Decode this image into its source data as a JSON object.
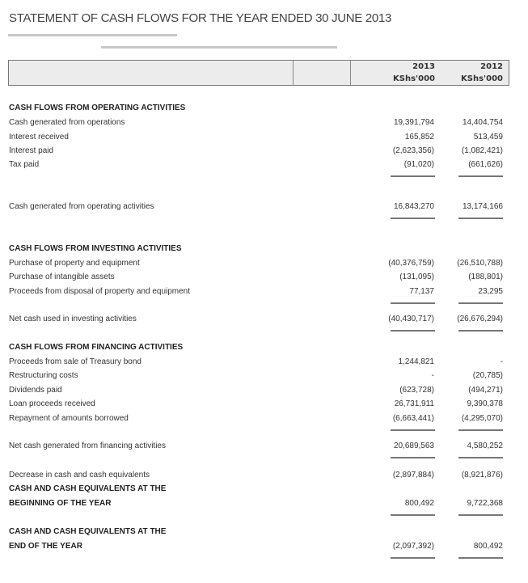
{
  "title": "STATEMENT OF CASH FLOWS FOR THE YEAR ENDED 30 JUNE 2013",
  "columns": [
    {
      "year": "2013",
      "unit": "KShs'000"
    },
    {
      "year": "2012",
      "unit": "KShs'000"
    }
  ],
  "rows": [
    {
      "label": "CASH FLOWS FROM OPERATING ACTIVITIES",
      "bold": true,
      "v2013": "",
      "v2012": ""
    },
    {
      "label": "Cash generated from operations",
      "v2013": "19,391,794",
      "v2012": "14,404,754"
    },
    {
      "label": "Interest received",
      "v2013": "165,852",
      "v2012": "513,459"
    },
    {
      "label": "Interest paid",
      "v2013": "(2,623,356)",
      "v2012": "(1,082,421)"
    },
    {
      "label": "Tax paid",
      "v2013": "(91,020)",
      "v2012": "(661,626)",
      "underline": true
    },
    {
      "label": "Cash generated from operating activities",
      "v2013": "16,843,270",
      "v2012": "13,174,166",
      "underline": true
    },
    {
      "label": "CASH FLOWS FROM INVESTING ACTIVITIES",
      "bold": true,
      "v2013": "",
      "v2012": ""
    },
    {
      "label": "Purchase of property and equipment",
      "v2013": "(40,376,759)",
      "v2012": "(26,510,788)"
    },
    {
      "label": "Purchase of intangible assets",
      "v2013": "(131,095)",
      "v2012": "(188,801)"
    },
    {
      "label": "Proceeds from disposal of property and equipment",
      "v2013": "77,137",
      "v2012": "23,295",
      "underline": true
    },
    {
      "label": "Net cash used in investing activities",
      "v2013": "(40,430,717)",
      "v2012": "(26,676,294)",
      "underline": true
    },
    {
      "label": "CASH FLOWS FROM FINANCING ACTIVITIES",
      "bold": true,
      "v2013": "",
      "v2012": ""
    },
    {
      "label": "Proceeds from sale of Treasury bond",
      "v2013": "1,244,821",
      "v2012": "-"
    },
    {
      "label": "Restructuring costs",
      "v2013": "-",
      "v2012": "(20,785)"
    },
    {
      "label": "Dividends paid",
      "v2013": "(623,728)",
      "v2012": "(494,271)"
    },
    {
      "label": "Loan proceeds received",
      "v2013": "26,731,911",
      "v2012": "9,390,378"
    },
    {
      "label": "Repayment of amounts borrowed",
      "v2013": "(6,663,441)",
      "v2012": "(4,295,070)",
      "underline": true
    },
    {
      "label": "Net cash generated from financing activities",
      "v2013": "20,689,563",
      "v2012": "4,580,252",
      "underline": true
    },
    {
      "label": "Decrease in cash and cash equivalents",
      "v2013": "(2,897,884)",
      "v2012": "(8,921,876)"
    },
    {
      "label": "CASH AND CASH EQUIVALENTS AT THE",
      "bold": true,
      "v2013": "",
      "v2012": ""
    },
    {
      "label": "BEGINNING OF THE YEAR",
      "bold": true,
      "v2013": "800,492",
      "v2012": "9,722,368",
      "underline": true
    },
    {
      "label": "CASH AND CASH EQUIVALENTS AT THE",
      "bold": true,
      "v2013": "",
      "v2012": ""
    },
    {
      "label": "END OF THE YEAR",
      "bold": true,
      "v2013": "(2,097,392)",
      "v2012": "800,492",
      "underline": true
    }
  ]
}
